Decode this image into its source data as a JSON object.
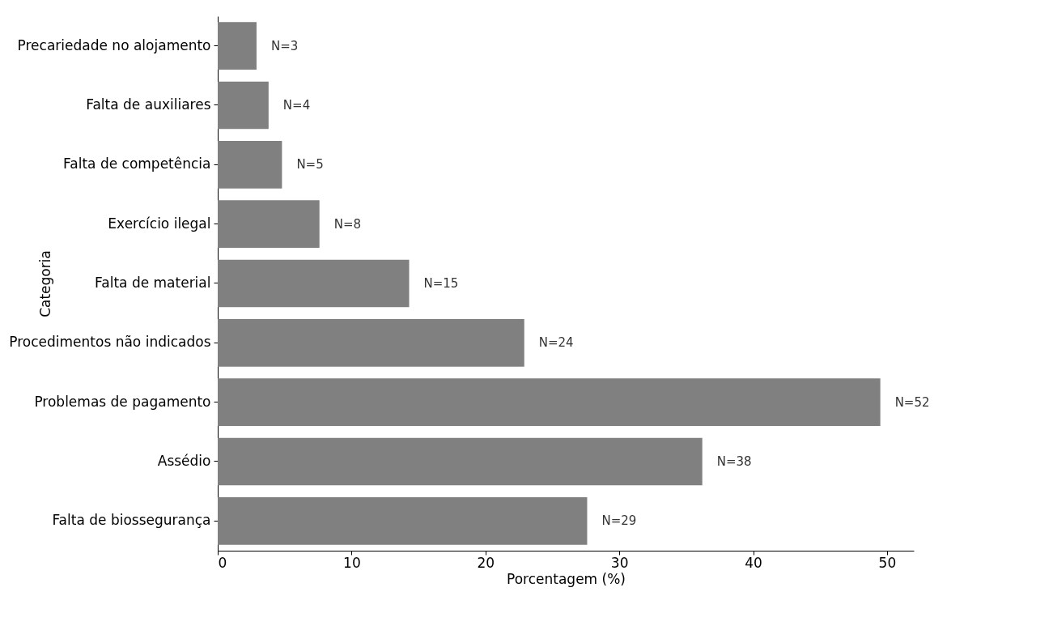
{
  "chart_data": {
    "type": "bar",
    "orientation": "horizontal",
    "xlabel": "Porcentagem (%)",
    "ylabel": "Categoria",
    "categories": [
      "Precariedade no alojamento",
      "Falta de auxiliares",
      "Falta de competência",
      "Exercício ilegal",
      "Falta de material",
      "Procedimentos não indicados",
      "Problemas de pagamento",
      "Assédio",
      "Falta de biossegurança"
    ],
    "values": [
      2.9,
      3.8,
      4.8,
      7.6,
      14.3,
      22.9,
      49.5,
      36.2,
      27.6
    ],
    "annotations": [
      {
        "text": "N=3",
        "x": 2.9,
        "y": "Precariedade no alojamento"
      },
      {
        "text": "N=4",
        "x": 3.8,
        "y": "Falta de auxiliares"
      },
      {
        "text": "N=5",
        "x": 4.8,
        "y": "Falta de competência"
      },
      {
        "text": "N=8",
        "x": 7.6,
        "y": "Exercício ilegal"
      },
      {
        "text": "N=15",
        "x": 14.3,
        "y": "Falta de material"
      },
      {
        "text": "N=24",
        "x": 22.9,
        "y": "Procedimentos não indicados"
      },
      {
        "text": "N=52",
        "x": 49.5,
        "y": "Problemas de pagamento"
      },
      {
        "text": "N=38",
        "x": 36.2,
        "y": "Assédio"
      },
      {
        "text": "N=29",
        "x": 27.6,
        "y": "Falta de biossegurança"
      }
    ],
    "color": "#808080",
    "xlim": [
      0,
      52
    ],
    "xticks": [
      0,
      10,
      20,
      30,
      40,
      50
    ]
  }
}
